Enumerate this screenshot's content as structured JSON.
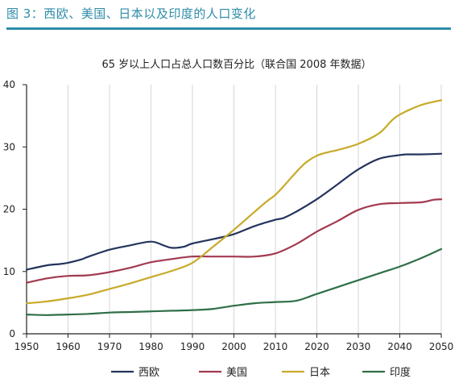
{
  "header": {
    "title": "图 3：西欧、美国、日本以及印度的人口变化"
  },
  "chart_data": {
    "type": "line",
    "title": "65 岁以上人口占总人口数百分比（联合国 2008 年数据）",
    "xlabel": "",
    "ylabel": "",
    "xlim": [
      1950,
      2050
    ],
    "ylim": [
      0,
      40
    ],
    "xticks": [
      1950,
      1960,
      1970,
      1980,
      1990,
      2000,
      2010,
      2020,
      2030,
      2040,
      2050
    ],
    "yticks": [
      0,
      10,
      20,
      30,
      40
    ],
    "grid": {
      "vertical": true,
      "horizontal": false
    },
    "legend_position": "bottom",
    "series": [
      {
        "name": "西欧",
        "color": "#24345c",
        "x": [
          1950,
          1955,
          1958,
          1960,
          1963,
          1965,
          1970,
          1975,
          1980,
          1983,
          1985,
          1988,
          1990,
          1995,
          2000,
          2005,
          2010,
          2012,
          2015,
          2020,
          2025,
          2030,
          2035,
          2040,
          2042,
          2045,
          2050
        ],
        "y": [
          10.3,
          11.0,
          11.2,
          11.4,
          11.9,
          12.4,
          13.5,
          14.2,
          14.8,
          14.2,
          13.8,
          14.0,
          14.5,
          15.2,
          16.0,
          17.3,
          18.3,
          18.6,
          19.6,
          21.6,
          24.0,
          26.4,
          28.1,
          28.7,
          28.8,
          28.8,
          28.9
        ]
      },
      {
        "name": "美国",
        "color": "#a23a50",
        "x": [
          1950,
          1955,
          1960,
          1965,
          1970,
          1975,
          1980,
          1985,
          1990,
          1995,
          2000,
          2005,
          2010,
          2015,
          2020,
          2025,
          2030,
          2035,
          2040,
          2045,
          2048,
          2050
        ],
        "y": [
          8.2,
          8.9,
          9.3,
          9.4,
          9.9,
          10.6,
          11.5,
          12.0,
          12.4,
          12.4,
          12.4,
          12.4,
          12.9,
          14.4,
          16.4,
          18.1,
          19.9,
          20.8,
          21.0,
          21.1,
          21.5,
          21.6
        ]
      },
      {
        "name": "日本",
        "color": "#c7aa2a",
        "x": [
          1950,
          1955,
          1960,
          1965,
          1970,
          1975,
          1980,
          1985,
          1990,
          1995,
          2000,
          2005,
          2008,
          2010,
          2012,
          2014,
          2017,
          2020,
          2023,
          2025,
          2030,
          2035,
          2038,
          2040,
          2045,
          2050
        ],
        "y": [
          4.9,
          5.2,
          5.7,
          6.3,
          7.2,
          8.1,
          9.1,
          10.1,
          11.4,
          14.0,
          16.7,
          19.6,
          21.3,
          22.3,
          23.7,
          25.2,
          27.3,
          28.6,
          29.2,
          29.5,
          30.5,
          32.2,
          34.2,
          35.2,
          36.7,
          37.5
        ]
      },
      {
        "name": "印度",
        "color": "#2f6f48",
        "x": [
          1950,
          1955,
          1960,
          1965,
          1970,
          1975,
          1980,
          1985,
          1990,
          1995,
          2000,
          2005,
          2010,
          2015,
          2020,
          2025,
          2030,
          2035,
          2040,
          2045,
          2050
        ],
        "y": [
          3.1,
          3.0,
          3.1,
          3.2,
          3.4,
          3.5,
          3.6,
          3.7,
          3.8,
          4.0,
          4.5,
          4.9,
          5.1,
          5.3,
          6.4,
          7.5,
          8.6,
          9.7,
          10.8,
          12.1,
          13.6
        ]
      }
    ]
  }
}
